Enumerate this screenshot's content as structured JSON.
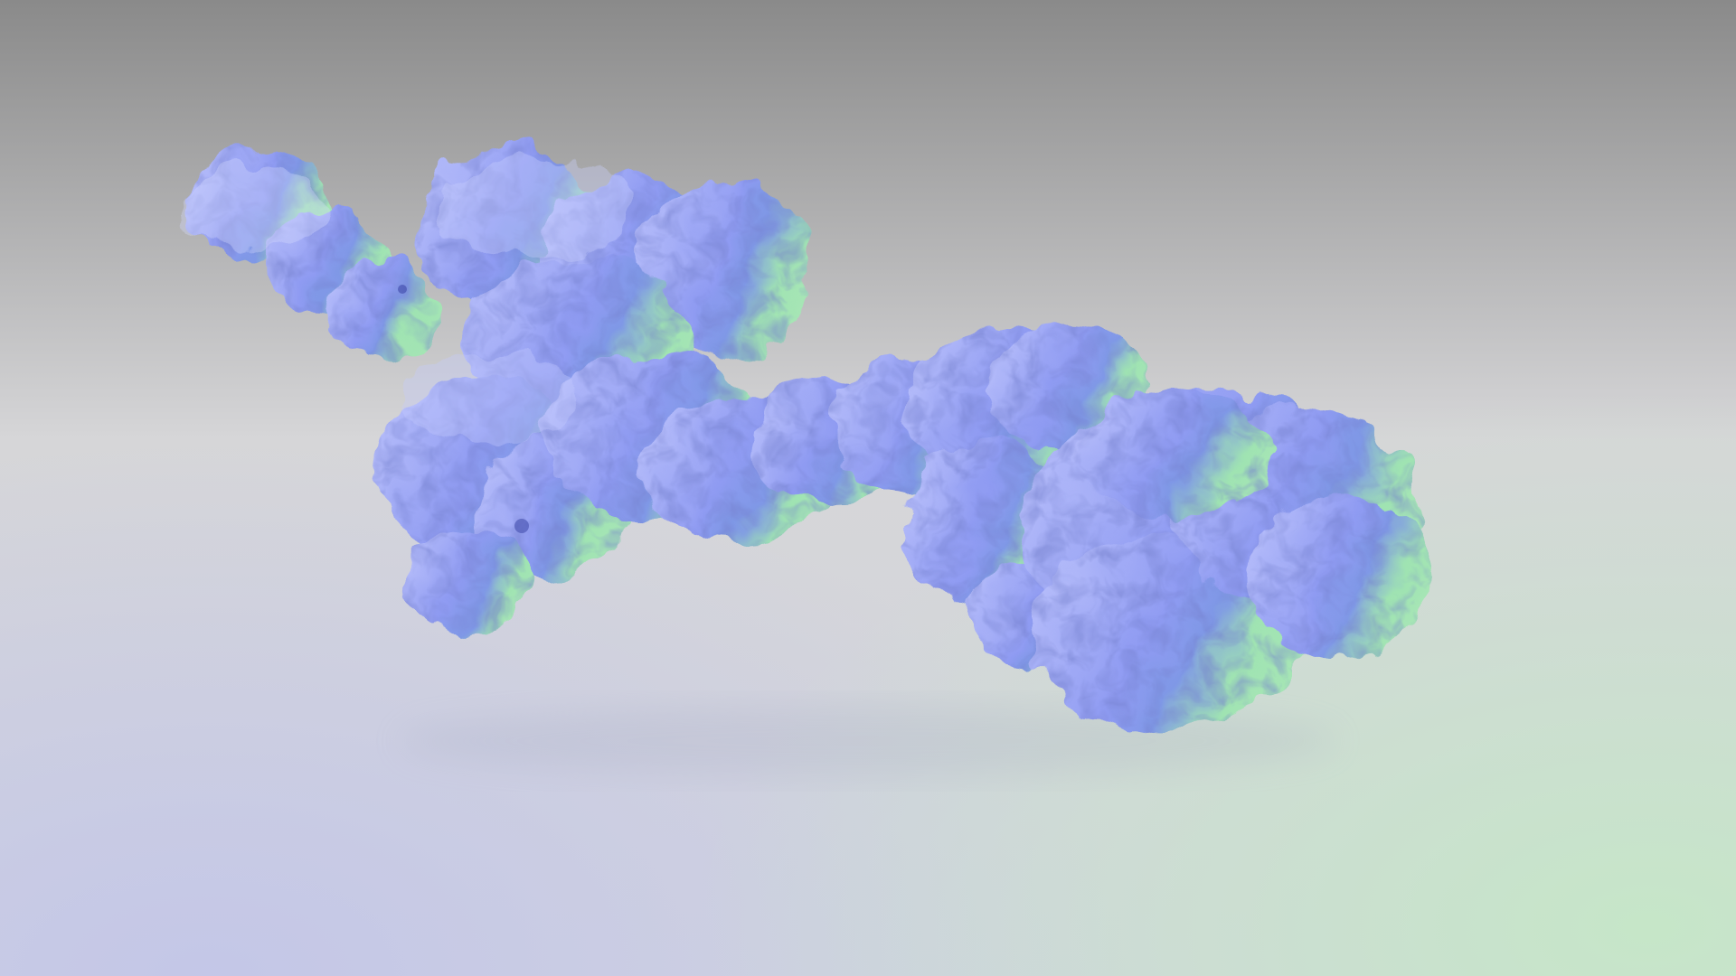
{
  "scene": {
    "subject": "protein-surface-render",
    "colors": {
      "background_top": "#8a8a8a",
      "background_mid": "#d6d6d8",
      "background_bottom_left": "#c3c6e8",
      "background_bottom_right": "#c6e6c8",
      "molecule_blue": "#8f9bf2",
      "molecule_blue_light": "#b6bdfa",
      "molecule_blue_shadow": "#3a45b0",
      "molecule_green": "#9fe3b2",
      "molecule_green_shadow": "#2c5fa0"
    }
  }
}
